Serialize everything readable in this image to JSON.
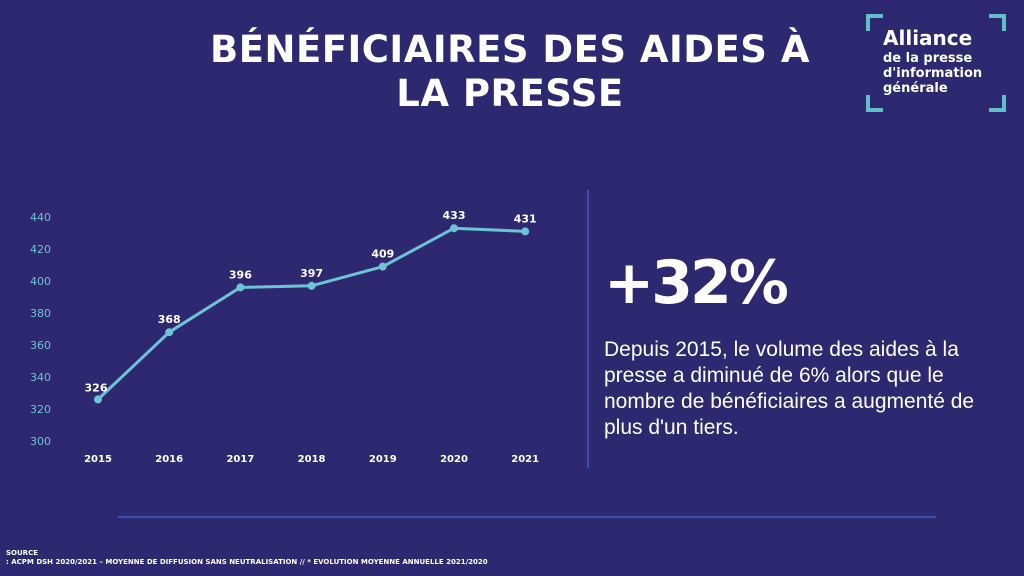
{
  "title_line1": "BÉNÉFICIAIRES DES AIDES À",
  "title_line2": "LA PRESSE",
  "logo": {
    "line1": "Alliance",
    "line2": "de la presse",
    "line3": "d'information",
    "line4": "générale"
  },
  "highlight": "+32%",
  "description": "Depuis 2015, le volume des aides à la presse a diminué de 6% alors que le nombre de bénéficiaires a augmenté de plus d'un tiers.",
  "source": {
    "label": "SOURCE",
    "text": ": ACPM DSH 2020/2021 – MOYENNE DE DIFFUSION SANS NEUTRALISATION // * EVOLUTION MOYENNE ANNUELLE 2021/2020"
  },
  "colors": {
    "background": "#2e2870",
    "line": "#6cc4d4",
    "axis_labels": "#6cc4d4",
    "text": "#ffffff"
  },
  "chart_data": {
    "type": "line",
    "categories": [
      "2015",
      "2016",
      "2017",
      "2018",
      "2019",
      "2020",
      "2021"
    ],
    "values": [
      326,
      368,
      396,
      397,
      409,
      433,
      431
    ],
    "data_labels": [
      "326",
      "368",
      "396",
      "397",
      "409",
      "433",
      "431"
    ],
    "yticks": [
      "300",
      "320",
      "340",
      "360",
      "380",
      "400",
      "420",
      "440"
    ],
    "ylim": [
      300,
      440
    ],
    "title": "",
    "xlabel": "",
    "ylabel": "",
    "grid": false
  }
}
